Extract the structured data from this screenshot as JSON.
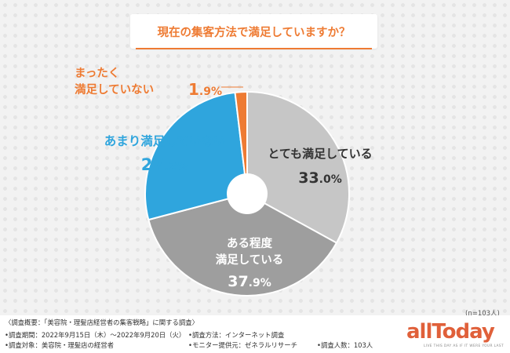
{
  "chart_data": {
    "type": "pie",
    "title": "現在の集客方法で満足していますか？",
    "slices": [
      {
        "label_lines": [
          "とても満足している"
        ],
        "value_int": "33",
        "value_dec": ".0%",
        "value": 33.0,
        "color": "#c6c6c6",
        "label_color": "#333333"
      },
      {
        "label_lines": [
          "ある程度",
          "満足している"
        ],
        "value_int": "37",
        "value_dec": ".9%",
        "value": 37.9,
        "color": "#9e9e9e",
        "label_color": "#ffffff"
      },
      {
        "label_lines": [
          "あまり満足していない"
        ],
        "value_int": "27",
        "value_dec": ".2%",
        "value": 27.2,
        "color": "#2fa5dd",
        "label_color": "#2fa5dd"
      },
      {
        "label_lines": [
          "まったく",
          "満足していない"
        ],
        "value_int": "1",
        "value_dec": ".9%",
        "value": 1.9,
        "color": "#ee7b33",
        "label_color": "#ee7b33"
      }
    ],
    "n_note": "(n=103人)"
  },
  "footer": {
    "line1": "〈調査概要：「美容院・理髪店経営者の集客戦略」に関する調査〉",
    "period": "•調査期間：2022年9月15日（木）～2022年9月20日（火）",
    "method": "•調査方法：インターネット調査",
    "target": "•調査対象：美容院・理髪店の経営者",
    "provider": "•モニター提供元：ゼネラルリサーチ",
    "count": "•調査人数：103人"
  },
  "logo": {
    "text": "allToday",
    "tagline": "LIVE THIS DAY AS IF IT WERE YOUR LAST"
  }
}
